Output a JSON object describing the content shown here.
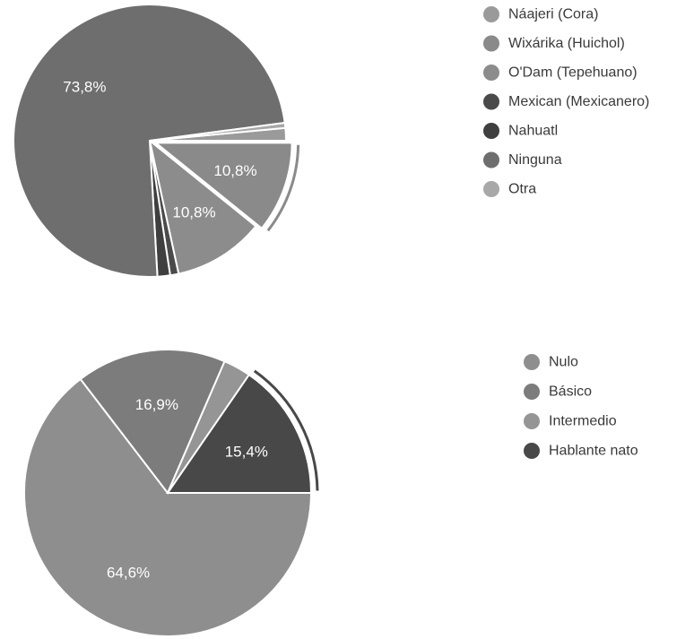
{
  "chart_data": [
    {
      "type": "pie",
      "legend_position": "right",
      "categories": [
        "Náajeri (Cora)",
        "Wixárika (Huichol)",
        "O'Dam (Tepehuano)",
        "Mexican (Mexicanero)",
        "Nahuatl",
        "Ninguna",
        "Otra"
      ],
      "values": [
        1.5,
        10.8,
        10.8,
        1.0,
        1.5,
        73.8,
        0.6
      ],
      "data_labels": [
        "",
        "10,8%",
        "10,8%",
        "",
        "",
        "73,8%",
        ""
      ],
      "colors": [
        "#9a9a9a",
        "#8a8a8a",
        "#8c8c8c",
        "#4a4a4a",
        "#3f3f3f",
        "#6e6e6e",
        "#a8a8a8"
      ],
      "highlight": "Wixárika (Huichol)"
    },
    {
      "type": "pie",
      "legend_position": "right",
      "categories": [
        "Nulo",
        "Básico",
        "Intermedio",
        "Hablante nato"
      ],
      "values": [
        64.6,
        16.9,
        3.1,
        15.4
      ],
      "data_labels": [
        "64,6%",
        "16,9%",
        "",
        "15,4%"
      ],
      "colors": [
        "#8e8e8e",
        "#7c7c7c",
        "#959595",
        "#484848"
      ],
      "highlight": "Hablante nato"
    }
  ]
}
